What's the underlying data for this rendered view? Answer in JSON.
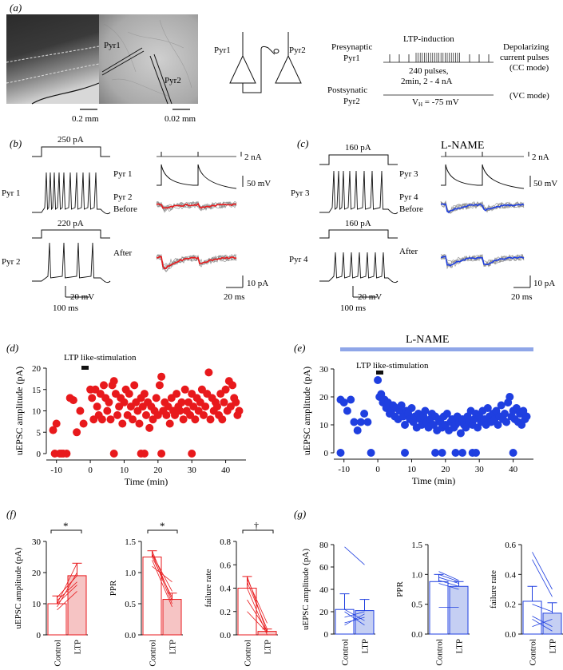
{
  "panels": {
    "a": {
      "label": "(a)",
      "scale_left": "0.2 mm",
      "scale_right": "0.02 mm",
      "photo_labels": {
        "pyr1": "Pyr1",
        "pyr2": "Pyr2"
      },
      "diagram_labels": {
        "pyr1": "Pyr1",
        "pyr2": "Pyr2"
      },
      "protocol": {
        "presynaptic_line1": "Presynaptic",
        "presynaptic_line2": "Pyr1",
        "ltp_induction": "LTP-induction",
        "pulses_line1": "240 pulses,",
        "pulses_line2": "2min, 2 - 4 nA",
        "postsynaptic_line1": "Postsynatic",
        "postsynaptic_line2": "Pyr2",
        "vh_prefix": "V",
        "vh_sub": "H",
        "vh_value": " = -75 mV",
        "depol_line1": "Depolarizing",
        "depol_line2": "current pulses",
        "cc_mode": "(CC mode)",
        "vc_mode": "(VC mode)"
      }
    },
    "b": {
      "label": "(b)",
      "step1": "250 pA",
      "step2": "220 pA",
      "cell1": "Pyr 1",
      "cell2": "Pyr 2",
      "pre": "Pyr 1",
      "post": "Pyr 2",
      "before": "Before",
      "after": "After",
      "cal_na": "2 nA",
      "cal_mv": "50 mV",
      "cal_pa": "10 pA",
      "cal_ms": "20 ms",
      "cal_20mv": "20 mV",
      "cal_100ms": "100 ms"
    },
    "c": {
      "label": "(c)",
      "drug": "L-NAME",
      "step1": "160 pA",
      "step2": "160 pA",
      "cell1": "Pyr 3",
      "cell2": "Pyr 4",
      "pre": "Pyr 3",
      "post": "Pyr 4",
      "before": "Before",
      "after": "After",
      "cal_na": "2 nA",
      "cal_mv": "50 mV",
      "cal_pa": "10 pA",
      "cal_ms": "20 ms",
      "cal_20mv": "20 mV",
      "cal_100ms": "100 ms"
    },
    "d": {
      "label": "(d)",
      "stim": "LTP like-stimulation"
    },
    "e": {
      "label": "(e)",
      "stim": "LTP like-stimulation",
      "drug": "L-NAME"
    },
    "f": {
      "label": "(f)",
      "sig1": "*",
      "sig2": "*",
      "sig3": "†"
    },
    "g": {
      "label": "(g)"
    }
  },
  "colors": {
    "red": "#e8191c",
    "blue": "#1f3fe0",
    "lname_bar": "#8fa6e8",
    "pink": "#f6c4c4",
    "lightblue": "#c5cff3"
  },
  "chart_data": [
    {
      "id": "d",
      "type": "scatter",
      "xlabel": "Time (min)",
      "ylabel": "uEPSC amplitude (pA)",
      "xlim": [
        -13,
        46
      ],
      "ylim": [
        0,
        20
      ],
      "xticks": [
        -10,
        0,
        10,
        20,
        30,
        40
      ],
      "yticks": [
        0,
        5,
        10,
        15,
        20
      ],
      "points": [
        [
          -11,
          5.5
        ],
        [
          -10,
          7
        ],
        [
          -9,
          0
        ],
        [
          -8,
          0
        ],
        [
          -7,
          0
        ],
        [
          -6,
          13
        ],
        [
          -5,
          12.5
        ],
        [
          -4,
          5
        ],
        [
          -3,
          10
        ],
        [
          -2,
          7
        ],
        [
          -10.5,
          0
        ],
        [
          -8.5,
          0
        ],
        [
          0,
          15
        ],
        [
          0.5,
          13
        ],
        [
          1,
          8
        ],
        [
          1.5,
          15
        ],
        [
          2,
          11
        ],
        [
          2.5,
          9
        ],
        [
          3,
          14
        ],
        [
          3.5,
          8
        ],
        [
          4,
          16
        ],
        [
          4.5,
          13
        ],
        [
          5,
          10
        ],
        [
          5.5,
          12
        ],
        [
          6,
          8
        ],
        [
          6.5,
          16
        ],
        [
          7,
          17
        ],
        [
          7.5,
          14
        ],
        [
          8,
          9
        ],
        [
          8.5,
          11
        ],
        [
          9,
          13
        ],
        [
          9.5,
          7
        ],
        [
          10,
          12
        ],
        [
          10.5,
          15
        ],
        [
          11,
          9
        ],
        [
          11.5,
          14
        ],
        [
          12,
          11
        ],
        [
          12.5,
          8
        ],
        [
          13,
          16
        ],
        [
          13.5,
          12
        ],
        [
          14,
          10
        ],
        [
          14.5,
          7
        ],
        [
          15,
          13
        ],
        [
          15.5,
          11
        ],
        [
          16,
          14
        ],
        [
          16.5,
          9
        ],
        [
          17,
          12
        ],
        [
          17.5,
          6
        ],
        [
          18,
          11
        ],
        [
          18.5,
          8
        ],
        [
          19,
          10
        ],
        [
          19.5,
          13
        ],
        [
          20,
          9
        ],
        [
          20.5,
          16
        ],
        [
          21,
          18
        ],
        [
          21.5,
          10
        ],
        [
          22,
          12
        ],
        [
          22.5,
          9
        ],
        [
          23,
          11
        ],
        [
          23.5,
          7
        ],
        [
          24,
          13
        ],
        [
          24.5,
          10
        ],
        [
          25,
          9
        ],
        [
          25.5,
          14
        ],
        [
          26,
          11
        ],
        [
          26.5,
          10
        ],
        [
          27,
          12
        ],
        [
          27.5,
          8
        ],
        [
          28,
          15
        ],
        [
          28.5,
          10
        ],
        [
          29,
          12
        ],
        [
          29.5,
          9
        ],
        [
          30,
          14
        ],
        [
          30.5,
          11
        ],
        [
          31,
          8
        ],
        [
          31.5,
          13
        ],
        [
          32,
          10
        ],
        [
          32.5,
          12
        ],
        [
          33,
          15
        ],
        [
          33.5,
          9
        ],
        [
          34,
          11
        ],
        [
          34.5,
          14
        ],
        [
          35,
          19
        ],
        [
          35.5,
          8
        ],
        [
          36,
          13
        ],
        [
          36.5,
          10
        ],
        [
          37,
          12
        ],
        [
          37.5,
          11
        ],
        [
          38,
          9
        ],
        [
          38.5,
          14
        ],
        [
          39,
          8
        ],
        [
          39.5,
          12
        ],
        [
          40,
          15
        ],
        [
          40.5,
          10
        ],
        [
          41,
          17
        ],
        [
          41.5,
          11
        ],
        [
          42,
          16
        ],
        [
          42.5,
          13
        ],
        [
          43,
          12
        ],
        [
          43.5,
          9
        ],
        [
          44,
          10
        ],
        [
          7,
          0
        ],
        [
          15,
          0
        ],
        [
          16,
          0
        ],
        [
          21,
          0
        ],
        [
          30,
          0
        ]
      ]
    },
    {
      "id": "e",
      "type": "scatter",
      "xlabel": "Time (min)",
      "ylabel": "uEPSC amplitude (pA)",
      "xlim": [
        -13,
        46
      ],
      "ylim": [
        0,
        30
      ],
      "xticks": [
        -10,
        0,
        10,
        20,
        30,
        40
      ],
      "yticks": [
        0,
        10,
        20,
        30
      ],
      "points": [
        [
          -11,
          19
        ],
        [
          -10,
          18
        ],
        [
          -9,
          15
        ],
        [
          -8,
          19
        ],
        [
          -7,
          11
        ],
        [
          -6,
          8
        ],
        [
          -5,
          11
        ],
        [
          -4,
          14
        ],
        [
          -3,
          11
        ],
        [
          -11,
          0
        ],
        [
          -2,
          0
        ],
        [
          0,
          26
        ],
        [
          0.5,
          20
        ],
        [
          1,
          21
        ],
        [
          1.5,
          18
        ],
        [
          2,
          19
        ],
        [
          2.5,
          16
        ],
        [
          3,
          18
        ],
        [
          3.5,
          14
        ],
        [
          4,
          15
        ],
        [
          4.5,
          17
        ],
        [
          5,
          13
        ],
        [
          5.5,
          16
        ],
        [
          6,
          12
        ],
        [
          6.5,
          15
        ],
        [
          7,
          17
        ],
        [
          7.5,
          13
        ],
        [
          8,
          10
        ],
        [
          8.5,
          15
        ],
        [
          9,
          14
        ],
        [
          9.5,
          12
        ],
        [
          10,
          16
        ],
        [
          10.5,
          11
        ],
        [
          11,
          13
        ],
        [
          11.5,
          9
        ],
        [
          12,
          14
        ],
        [
          12.5,
          12
        ],
        [
          13,
          10
        ],
        [
          13.5,
          13
        ],
        [
          14,
          15
        ],
        [
          14.5,
          11
        ],
        [
          15,
          9
        ],
        [
          15.5,
          12
        ],
        [
          16,
          14
        ],
        [
          16.5,
          10
        ],
        [
          17,
          13
        ],
        [
          17.5,
          8
        ],
        [
          18,
          12
        ],
        [
          18.5,
          11
        ],
        [
          19,
          9
        ],
        [
          19.5,
          13
        ],
        [
          20,
          10
        ],
        [
          20.5,
          14
        ],
        [
          21,
          8
        ],
        [
          21.5,
          11
        ],
        [
          22,
          12
        ],
        [
          22.5,
          9
        ],
        [
          23,
          10
        ],
        [
          23.5,
          13
        ],
        [
          24,
          11
        ],
        [
          24.5,
          7
        ],
        [
          25,
          12
        ],
        [
          25.5,
          10
        ],
        [
          26,
          9
        ],
        [
          26.5,
          13
        ],
        [
          27,
          11
        ],
        [
          27.5,
          15
        ],
        [
          28,
          10
        ],
        [
          28.5,
          12
        ],
        [
          29,
          14
        ],
        [
          29.5,
          9
        ],
        [
          30,
          13
        ],
        [
          30.5,
          11
        ],
        [
          31,
          15
        ],
        [
          31.5,
          12
        ],
        [
          32,
          10
        ],
        [
          32.5,
          16
        ],
        [
          33,
          13
        ],
        [
          33.5,
          11
        ],
        [
          34,
          14
        ],
        [
          34.5,
          12
        ],
        [
          35,
          15
        ],
        [
          35.5,
          10
        ],
        [
          36,
          13
        ],
        [
          36.5,
          17
        ],
        [
          37,
          12
        ],
        [
          37.5,
          14
        ],
        [
          38,
          11
        ],
        [
          38.5,
          18
        ],
        [
          39,
          20
        ],
        [
          39.5,
          13
        ],
        [
          40,
          15
        ],
        [
          40.5,
          12
        ],
        [
          41,
          16
        ],
        [
          41.5,
          11
        ],
        [
          42,
          14
        ],
        [
          42.5,
          10
        ],
        [
          43,
          15
        ],
        [
          43.5,
          12
        ],
        [
          44,
          13
        ],
        [
          8,
          0
        ],
        [
          17,
          0
        ],
        [
          19,
          0
        ],
        [
          23,
          0
        ],
        [
          25,
          0
        ],
        [
          28,
          0
        ],
        [
          29,
          0
        ],
        [
          40,
          0
        ]
      ]
    },
    {
      "id": "f1",
      "type": "bar",
      "categories": [
        "Control",
        "LTP"
      ],
      "values": [
        10,
        19
      ],
      "errors": [
        2.5,
        4
      ],
      "ylabel": "uEPSC amplitude (pA)",
      "ylim": [
        0,
        30
      ],
      "yticks": [
        0,
        10,
        20,
        30
      ],
      "pairs": [
        [
          12,
          19
        ],
        [
          10,
          23
        ],
        [
          9,
          20
        ],
        [
          11,
          17
        ],
        [
          8,
          14
        ],
        [
          10,
          16
        ]
      ]
    },
    {
      "id": "f2",
      "type": "bar",
      "categories": [
        "Control",
        "LTP"
      ],
      "values": [
        1.25,
        0.57
      ],
      "errors": [
        0.1,
        0.1
      ],
      "ylabel": "PPR",
      "ylim": [
        0,
        1.5
      ],
      "yticks": [
        0.0,
        0.5,
        1.0,
        1.5
      ],
      "pairs": [
        [
          1.35,
          0.55
        ],
        [
          1.3,
          0.5
        ],
        [
          1.25,
          0.6
        ],
        [
          1.2,
          0.45
        ],
        [
          1.1,
          0.85
        ],
        [
          1.3,
          0.7
        ]
      ]
    },
    {
      "id": "f3",
      "type": "bar",
      "categories": [
        "Control",
        "LTP"
      ],
      "values": [
        0.4,
        0.03
      ],
      "errors": [
        0.1,
        0.02
      ],
      "ylabel": "failure rate",
      "ylim": [
        0,
        0.8
      ],
      "yticks": [
        0.0,
        0.2,
        0.4,
        0.6,
        0.8
      ],
      "pairs": [
        [
          0.5,
          0.02
        ],
        [
          0.45,
          0.05
        ],
        [
          0.4,
          0.0
        ],
        [
          0.3,
          0.03
        ],
        [
          0.2,
          0.02
        ],
        [
          0.48,
          0.1
        ]
      ]
    },
    {
      "id": "g1",
      "type": "bar",
      "categories": [
        "Control",
        "LTP"
      ],
      "values": [
        22,
        21
      ],
      "errors": [
        14,
        10
      ],
      "ylabel": "uEPSC amplitude (pA)",
      "ylim": [
        0,
        80
      ],
      "yticks": [
        0,
        20,
        40,
        60,
        80
      ],
      "pairs": [
        [
          78,
          62
        ],
        [
          20,
          8
        ],
        [
          15,
          20
        ],
        [
          8,
          18
        ],
        [
          22,
          12
        ],
        [
          10,
          15
        ]
      ]
    },
    {
      "id": "g2",
      "type": "bar",
      "categories": [
        "Control",
        "LTP"
      ],
      "values": [
        0.88,
        0.8
      ],
      "errors": [
        0.12,
        0.08
      ],
      "ylabel": "PPR",
      "ylim": [
        0,
        1.5
      ],
      "yticks": [
        0.0,
        0.5,
        1.0,
        1.5
      ],
      "pairs": [
        [
          1.05,
          0.9
        ],
        [
          0.95,
          0.85
        ],
        [
          0.9,
          0.8
        ],
        [
          0.85,
          0.75
        ],
        [
          1.0,
          0.88
        ],
        [
          0.45,
          0.45
        ]
      ]
    },
    {
      "id": "g3",
      "type": "bar",
      "categories": [
        "Control",
        "LTP"
      ],
      "values": [
        0.22,
        0.14
      ],
      "errors": [
        0.1,
        0.07
      ],
      "ylabel": "failure rate",
      "ylim": [
        0,
        0.6
      ],
      "yticks": [
        0.0,
        0.2,
        0.4,
        0.6
      ],
      "pairs": [
        [
          0.55,
          0.3
        ],
        [
          0.5,
          0.25
        ],
        [
          0.1,
          0.02
        ],
        [
          0.05,
          0.1
        ],
        [
          0.2,
          0.15
        ],
        [
          0.12,
          0.05
        ]
      ]
    }
  ]
}
